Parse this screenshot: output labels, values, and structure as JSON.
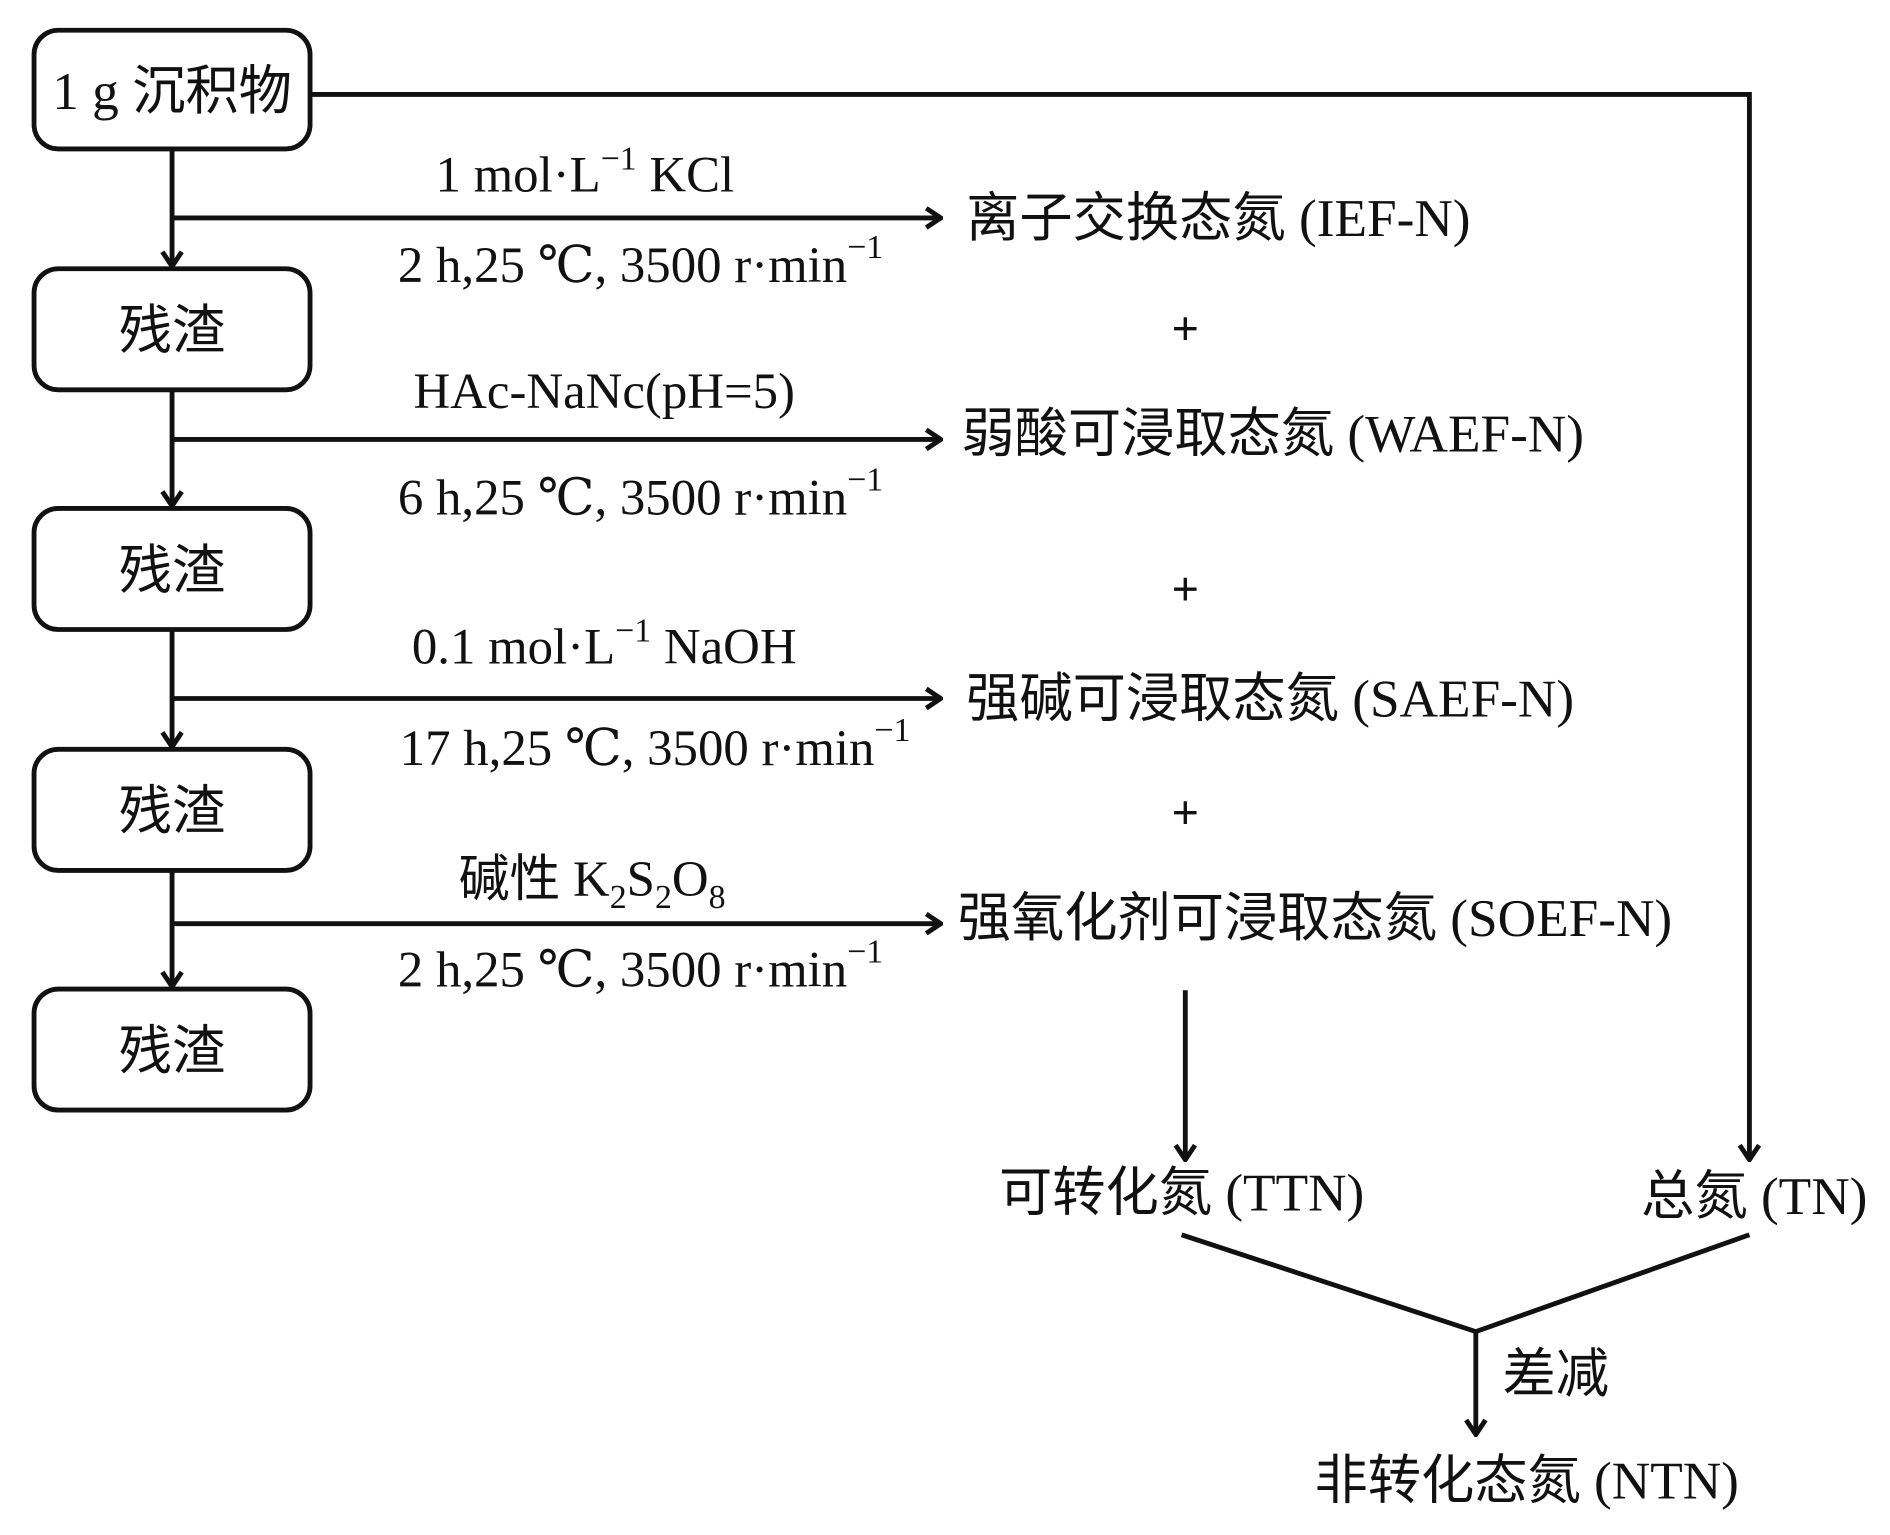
{
  "start": "1 g 沉积物",
  "residue": "残渣",
  "steps": [
    {
      "reagent_pre": "1 mol·L",
      "reagent_sup": "−1",
      "reagent_post": " KCl",
      "condition": "2 h,25 ℃, 3500 r·min",
      "condition_sup": "−1",
      "product": "离子交换态氮 (IEF-N)"
    },
    {
      "reagent_pre": "HAc-NaNc(pH=5)",
      "reagent_sup": "",
      "reagent_post": "",
      "condition": "6 h,25 ℃, 3500 r·min",
      "condition_sup": "−1",
      "product": "弱酸可浸取态氮 (WAEF-N)"
    },
    {
      "reagent_pre": "0.1 mol·L",
      "reagent_sup": "−1",
      "reagent_post": " NaOH",
      "condition": "17 h,25 ℃, 3500 r·min",
      "condition_sup": "−1",
      "product": "强碱可浸取态氮 (SAEF-N)"
    },
    {
      "reagent_pre": "碱性 K",
      "reagent_sub1": "2",
      "reagent_mid1": "S",
      "reagent_sub2": "2",
      "reagent_mid2": "O",
      "reagent_sub3": "8",
      "condition": "2 h,25 ℃, 3500 r·min",
      "condition_sup": "−1",
      "product": "强氧化剂可浸取态氮 (SOEF-N)"
    }
  ],
  "plus": "+",
  "ttn": "可转化氮 (TTN)",
  "tn": "总氮 (TN)",
  "subtract": "差减",
  "ntn": "非转化态氮 (NTN)"
}
